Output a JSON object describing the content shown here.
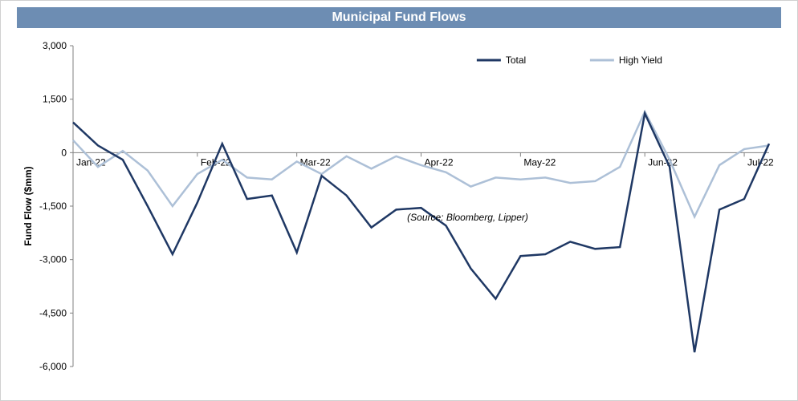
{
  "chart": {
    "type": "line",
    "title": "Municipal Fund Flows",
    "title_bar_bg": "#6d8db3",
    "title_color": "#ffffff",
    "title_fontsize": 16,
    "background_color": "#ffffff",
    "border_color": "#d0d0d0",
    "ylabel": "Fund Flow ($mm)",
    "ylabel_fontsize": 12,
    "ylim": [
      -6000,
      3000
    ],
    "yticks": [
      3000,
      1500,
      0,
      -1500,
      -3000,
      -4500,
      -6000
    ],
    "ytick_labels": [
      "3,000",
      "1,500",
      "0",
      "-1,500",
      "-3,000",
      "-4,500",
      "-6,000"
    ],
    "x_months": [
      "Jan-22",
      "Feb-22",
      "Mar-22",
      "Apr-22",
      "May-22",
      "Jun-22",
      "Jul-22"
    ],
    "n_points": 29,
    "month_tick_indices": [
      0,
      5,
      9,
      14,
      18,
      23,
      27
    ],
    "axis_line_color": "#808080",
    "axis_line_width": 1,
    "source_text": "(Source: Bloomberg, Lipper)",
    "legend": {
      "items": [
        {
          "label": "Total",
          "color": "#1f3864"
        },
        {
          "label": "High Yield",
          "color": "#adc0d7"
        }
      ]
    },
    "series": {
      "total": {
        "color": "#1f3864",
        "width": 2.5,
        "values": [
          850,
          200,
          -200,
          -1500,
          -2850,
          -1400,
          250,
          -1300,
          -1200,
          -2800,
          -650,
          -1200,
          -2100,
          -1600,
          -1550,
          -2050,
          -3250,
          -4100,
          -2900,
          -2850,
          -2500,
          -2700,
          -2650,
          1100,
          -400,
          -5600,
          -1600,
          -1300,
          250
        ]
      },
      "high_yield": {
        "color": "#adc0d7",
        "width": 2.5,
        "values": [
          350,
          -400,
          50,
          -500,
          -1500,
          -600,
          -200,
          -700,
          -750,
          -250,
          -600,
          -100,
          -450,
          -100,
          -350,
          -550,
          -950,
          -700,
          -750,
          -700,
          -850,
          -800,
          -400,
          1150,
          -200,
          -1800,
          -350,
          100,
          200
        ]
      }
    }
  }
}
